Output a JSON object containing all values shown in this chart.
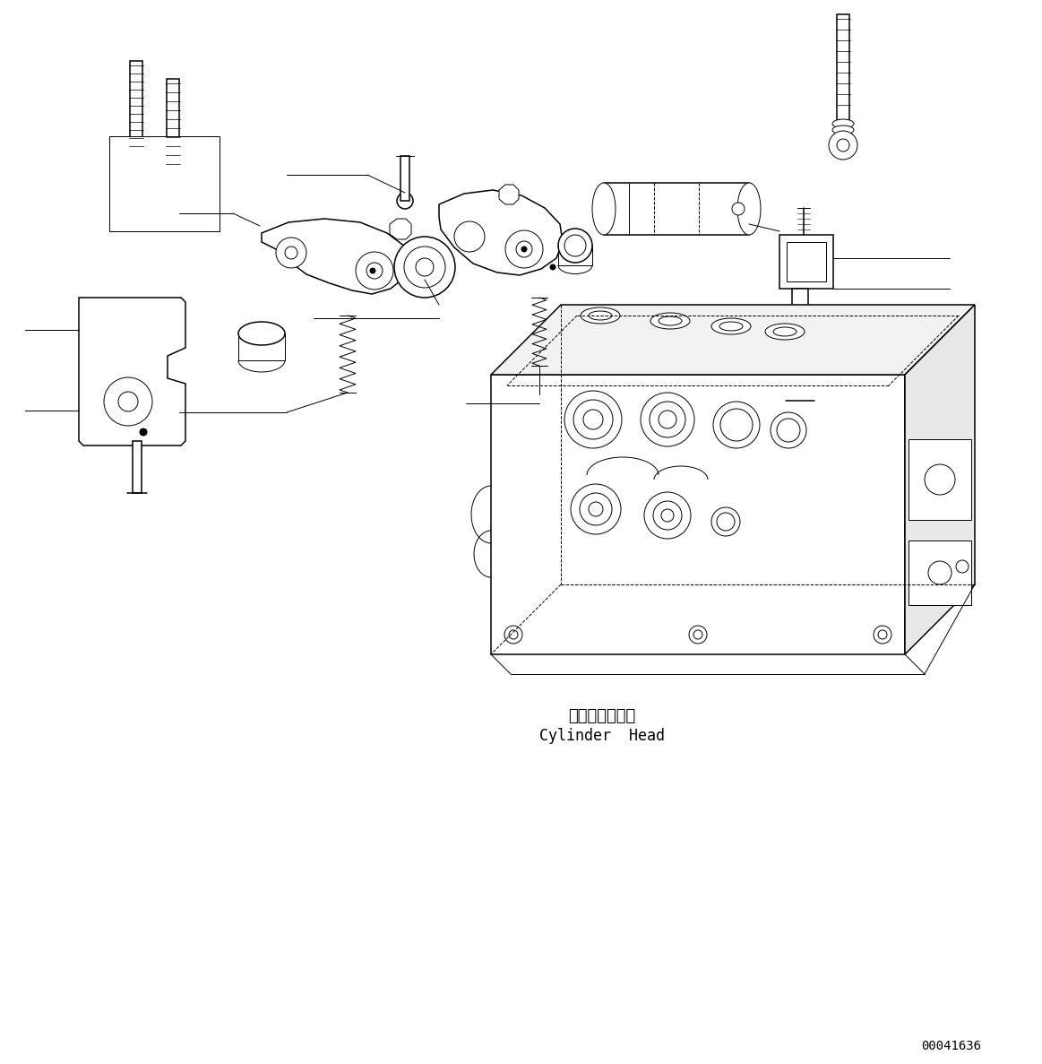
{
  "background_color": "#ffffff",
  "line_color": "#000000",
  "title_jp": "シリンダヘッド",
  "title_en": "Cylinder  Head",
  "part_number": "00041636",
  "fig_width": 11.63,
  "fig_height": 11.87,
  "lw_thin": 0.7,
  "lw_med": 1.1,
  "lw_thick": 1.6
}
